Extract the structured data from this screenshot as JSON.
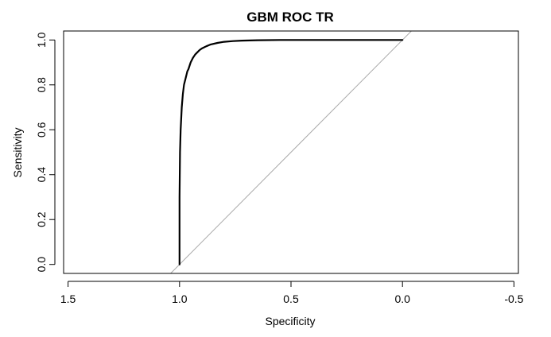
{
  "chart_data": {
    "type": "line",
    "title": "GBM ROC TR",
    "xlabel": "Specificity",
    "ylabel": "Sensitivity",
    "x_reversed": true,
    "xlim": [
      1.52,
      -0.52
    ],
    "ylim": [
      -0.04,
      1.04
    ],
    "x_ticks": [
      1.5,
      1.0,
      0.5,
      0.0,
      -0.5
    ],
    "x_tick_labels": [
      "1.5",
      "1.0",
      "0.5",
      "0.0",
      "-0.5"
    ],
    "y_ticks": [
      0.0,
      0.2,
      0.4,
      0.6,
      0.8,
      1.0
    ],
    "y_tick_labels": [
      "0.0",
      "0.2",
      "0.4",
      "0.6",
      "0.8",
      "1.0"
    ],
    "grid": false,
    "colors": {
      "roc": "#000000",
      "reference": "#a9a9a9",
      "frame": "#000000"
    },
    "series": [
      {
        "x": [
          1.0,
          1.0,
          0.998,
          0.995,
          0.99,
          0.985,
          0.98,
          0.975,
          0.97,
          0.965,
          0.96,
          0.95,
          0.94,
          0.93,
          0.92,
          0.91,
          0.9,
          0.88,
          0.86,
          0.83,
          0.8,
          0.76,
          0.72,
          0.65,
          0.55,
          0.45,
          0.3,
          0.15,
          0.0
        ],
        "y": [
          0.0,
          0.3,
          0.5,
          0.6,
          0.7,
          0.76,
          0.8,
          0.82,
          0.84,
          0.86,
          0.87,
          0.9,
          0.92,
          0.935,
          0.945,
          0.955,
          0.962,
          0.972,
          0.98,
          0.987,
          0.992,
          0.995,
          0.997,
          0.999,
          1.0,
          1.0,
          1.0,
          1.0,
          1.0
        ]
      }
    ],
    "reference_line": {
      "x": [
        1.04,
        -0.04
      ],
      "y": [
        -0.04,
        1.04
      ]
    }
  }
}
